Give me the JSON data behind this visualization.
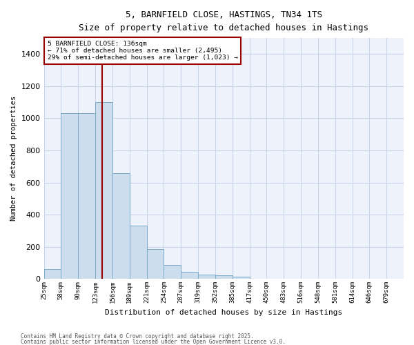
{
  "title_line1": "5, BARNFIELD CLOSE, HASTINGS, TN34 1TS",
  "title_line2": "Size of property relative to detached houses in Hastings",
  "xlabel": "Distribution of detached houses by size in Hastings",
  "ylabel": "Number of detached properties",
  "bar_color": "#ccdded",
  "bar_edge_color": "#7aaac8",
  "background_color": "#eef2fa",
  "grid_color": "#c8d4e8",
  "redline_value": 136,
  "redline_bin_index": 3.42,
  "categories": [
    "25sqm",
    "58sqm",
    "90sqm",
    "123sqm",
    "156sqm",
    "189sqm",
    "221sqm",
    "254sqm",
    "287sqm",
    "319sqm",
    "352sqm",
    "385sqm",
    "417sqm",
    "450sqm",
    "483sqm",
    "516sqm",
    "548sqm",
    "581sqm",
    "614sqm",
    "646sqm",
    "679sqm"
  ],
  "values": [
    60,
    1030,
    1030,
    1100,
    660,
    330,
    185,
    85,
    45,
    25,
    20,
    12,
    0,
    0,
    0,
    0,
    0,
    0,
    0,
    0,
    0
  ],
  "ylim": [
    0,
    1500
  ],
  "yticks": [
    0,
    200,
    400,
    600,
    800,
    1000,
    1200,
    1400
  ],
  "annotation_title": "5 BARNFIELD CLOSE: 136sqm",
  "annotation_line2": "← 71% of detached houses are smaller (2,495)",
  "annotation_line3": "29% of semi-detached houses are larger (1,023) →",
  "footnote1": "Contains HM Land Registry data © Crown copyright and database right 2025.",
  "footnote2": "Contains public sector information licensed under the Open Government Licence v3.0."
}
